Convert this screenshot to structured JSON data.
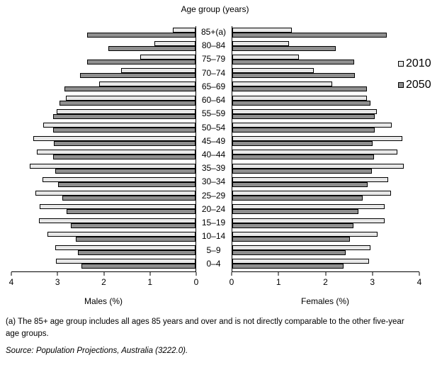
{
  "title": "Age group (years)",
  "legend": {
    "items": [
      {
        "label": "2010",
        "color": "#e8e8e8"
      },
      {
        "label": "2050",
        "color": "#8f8f8f"
      }
    ]
  },
  "axes": {
    "male": {
      "label": "Males (%)",
      "ticks": [
        "4",
        "3",
        "2",
        "1",
        "0"
      ]
    },
    "female": {
      "label": "Females (%)",
      "ticks": [
        "0",
        "1",
        "2",
        "3",
        "4"
      ]
    },
    "max_percent": 4
  },
  "footnote": {
    "line1": "(a) The 85+ age group includes all ages 85 years and over and is not directly comparable to the other five-year",
    "line2": "age groups."
  },
  "source": "Source: Population Projections, Australia (3222.0).",
  "chart_data": {
    "type": "bar",
    "subtype": "population-pyramid",
    "title": "Age group (years)",
    "xlabel_left": "Males (%)",
    "xlabel_right": "Females (%)",
    "xlim_left": [
      4,
      0
    ],
    "xlim_right": [
      0,
      4
    ],
    "grid": false,
    "legend_position": "right",
    "bar_colors": {
      "2010": "#e8e8e8",
      "2050": "#8f8f8f",
      "border": "#000000"
    },
    "categories": [
      "85+(a)",
      "80–84",
      "75–79",
      "70–74",
      "65–69",
      "60–64",
      "55–59",
      "50–54",
      "45–49",
      "40–44",
      "35–39",
      "30–34",
      "25–29",
      "20–24",
      "15–19",
      "10–14",
      "5–9",
      "0–4"
    ],
    "series": [
      {
        "name": "Males 2010",
        "values": [
          0.5,
          0.89,
          1.2,
          1.62,
          2.1,
          2.82,
          3.02,
          3.31,
          3.53,
          3.45,
          3.6,
          3.33,
          3.47,
          3.38,
          3.4,
          3.22,
          3.05,
          3.03
        ]
      },
      {
        "name": "Males 2050",
        "values": [
          2.35,
          1.89,
          2.36,
          2.51,
          2.84,
          2.95,
          3.09,
          3.1,
          3.07,
          3.09,
          3.05,
          2.99,
          2.9,
          2.8,
          2.71,
          2.6,
          2.55,
          2.48
        ]
      },
      {
        "name": "Females 2010",
        "values": [
          1.27,
          1.21,
          1.43,
          1.74,
          2.14,
          2.88,
          3.09,
          3.41,
          3.63,
          3.53,
          3.66,
          3.33,
          3.39,
          3.25,
          3.25,
          3.11,
          2.96,
          2.92
        ]
      },
      {
        "name": "Females 2050",
        "values": [
          3.31,
          2.21,
          2.61,
          2.62,
          2.88,
          2.95,
          3.05,
          3.04,
          3.0,
          3.03,
          2.98,
          2.9,
          2.79,
          2.69,
          2.59,
          2.51,
          2.43,
          2.38
        ]
      }
    ]
  }
}
